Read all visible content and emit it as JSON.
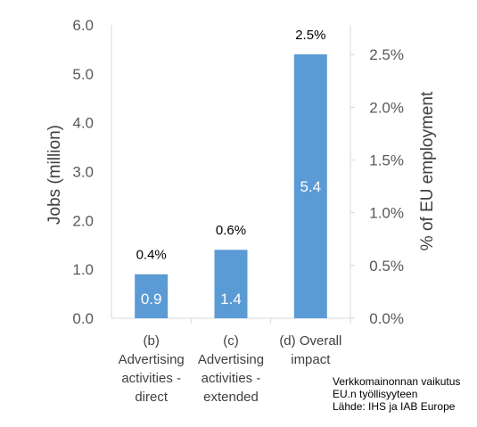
{
  "chart_data": {
    "type": "bar",
    "categories": [
      [
        "(b)",
        "Advertising",
        "activities -",
        "direct"
      ],
      [
        "(c)",
        "Advertising",
        "activities -",
        "extended"
      ],
      [
        "(d)  Overall",
        "impact"
      ]
    ],
    "values": [
      0.9,
      1.4,
      5.4
    ],
    "value_labels": [
      "0.9",
      "1.4",
      "5.4"
    ],
    "secondary_values": [
      0.4,
      0.6,
      2.5
    ],
    "secondary_labels": [
      "0.4%",
      "0.6%",
      "2.5%"
    ],
    "ylabel": "Jobs (million)",
    "y2label": "% of EU employment",
    "ylim": [
      0,
      6
    ],
    "yticks": [
      "0.0",
      "1.0",
      "2.0",
      "3.0",
      "4.0",
      "5.0",
      "6.0"
    ],
    "y2lim": [
      0,
      2.78
    ],
    "y2ticks": [
      "0.0%",
      "0.5%",
      "1.0%",
      "1.5%",
      "2.0%",
      "2.5%"
    ],
    "y2tick_values": [
      0,
      0.5,
      1.0,
      1.5,
      2.0,
      2.5
    ],
    "grid": false,
    "colors": {
      "bar": "#5b9bd5",
      "axis": "#d9d9d9"
    }
  },
  "caption": {
    "line1": "Verkkomainonnan vaikutus",
    "line2": "EU.n työllisyyteen",
    "line3": "Lähde: IHS ja IAB Europe"
  }
}
